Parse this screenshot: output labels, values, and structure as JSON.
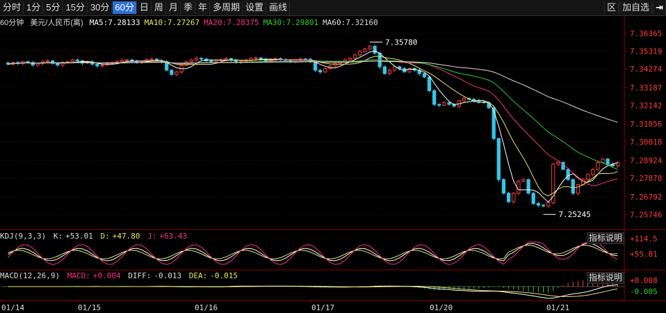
{
  "toolbar": {
    "periods": [
      "分时",
      "1分",
      "5分",
      "15分",
      "30分",
      "60分",
      "日",
      "周",
      "月",
      "季",
      "年",
      "多周期",
      "设置",
      "画线"
    ],
    "active": "60分",
    "right": [
      "区",
      "加自选"
    ]
  },
  "info": {
    "period_label": "60分钟",
    "symbol": "美元/人民币(离)",
    "ma": [
      {
        "label": "MA5:",
        "value": "7.28133",
        "color": "#ffffff"
      },
      {
        "label": "MA10:",
        "value": "7.27267",
        "color": "#e8e864"
      },
      {
        "label": "MA20:",
        "value": "7.28375",
        "color": "#ff2f8a"
      },
      {
        "label": "MA30:",
        "value": "7.29801",
        "color": "#2ecf2e"
      },
      {
        "label": "MA60:",
        "value": "7.32160",
        "color": "#dddddd"
      }
    ]
  },
  "kdj": {
    "name": "KDJ(9,3,3)",
    "k_label": "K:",
    "k_value": "+53.01",
    "d_label": "D:",
    "d_value": "+47.80",
    "j_label": "J:",
    "j_value": "+63.43",
    "axis": [
      "+114.5",
      "+55.81"
    ],
    "explain": "指标说明"
  },
  "macd": {
    "name": "MACD(12,26,9)",
    "macd_label": "MACD:",
    "macd_value": "+0.004",
    "diff_label": "DIFF:",
    "diff_value": "-0.013",
    "dea_label": "DEA:",
    "dea_value": "-0.015",
    "axis": [
      "+0.008",
      "-0.005"
    ],
    "explain": "指标说明"
  },
  "chart_data": {
    "type": "candlestick",
    "y_ticks": [
      7.36365,
      7.35319,
      7.34274,
      7.33187,
      7.32142,
      7.31056,
      7.3001,
      7.28924,
      7.27878,
      7.26792,
      7.25746
    ],
    "ylim": [
      7.252,
      7.366
    ],
    "x_labels": [
      "01/14",
      "01/15",
      "01/16",
      "01/17",
      "01/20",
      "01/21"
    ],
    "annotations": {
      "high": "7.35780",
      "low": "7.25245"
    },
    "closes": [
      7.3455,
      7.3465,
      7.346,
      7.347,
      7.3465,
      7.345,
      7.346,
      7.347,
      7.3475,
      7.346,
      7.345,
      7.3465,
      7.347,
      7.348,
      7.3475,
      7.3462,
      7.3468,
      7.3455,
      7.3445,
      7.345,
      7.346,
      7.3465,
      7.347,
      7.3478,
      7.348,
      7.3472,
      7.3468,
      7.347,
      7.3482,
      7.3485,
      7.3476,
      7.347,
      7.342,
      7.3395,
      7.341,
      7.345,
      7.347,
      7.348,
      7.349,
      7.3485,
      7.3475,
      7.347,
      7.348,
      7.3482,
      7.3488,
      7.3478,
      7.3468,
      7.347,
      7.348,
      7.349,
      7.3492,
      7.3485,
      7.3475,
      7.348,
      7.3488,
      7.3482,
      7.3476,
      7.347,
      7.3478,
      7.3486,
      7.3485,
      7.347,
      7.342,
      7.341,
      7.343,
      7.3445,
      7.346,
      7.347,
      7.348,
      7.349,
      7.351,
      7.353,
      7.3545,
      7.356,
      7.352,
      7.344,
      7.34,
      7.342,
      7.344,
      7.343,
      7.341,
      7.343,
      7.342,
      7.34,
      7.338,
      7.33,
      7.322,
      7.3215,
      7.323,
      7.322,
      7.321,
      7.324,
      7.3255,
      7.325,
      7.324,
      7.3235,
      7.323,
      7.32,
      7.302,
      7.278,
      7.27,
      7.265,
      7.27,
      7.277,
      7.278,
      7.27,
      7.264,
      7.263,
      7.2625,
      7.2645,
      7.287,
      7.288,
      7.284,
      7.278,
      7.27,
      7.275,
      7.278,
      7.281,
      7.284,
      7.288,
      7.29,
      7.287,
      7.286,
      7.288
    ]
  }
}
